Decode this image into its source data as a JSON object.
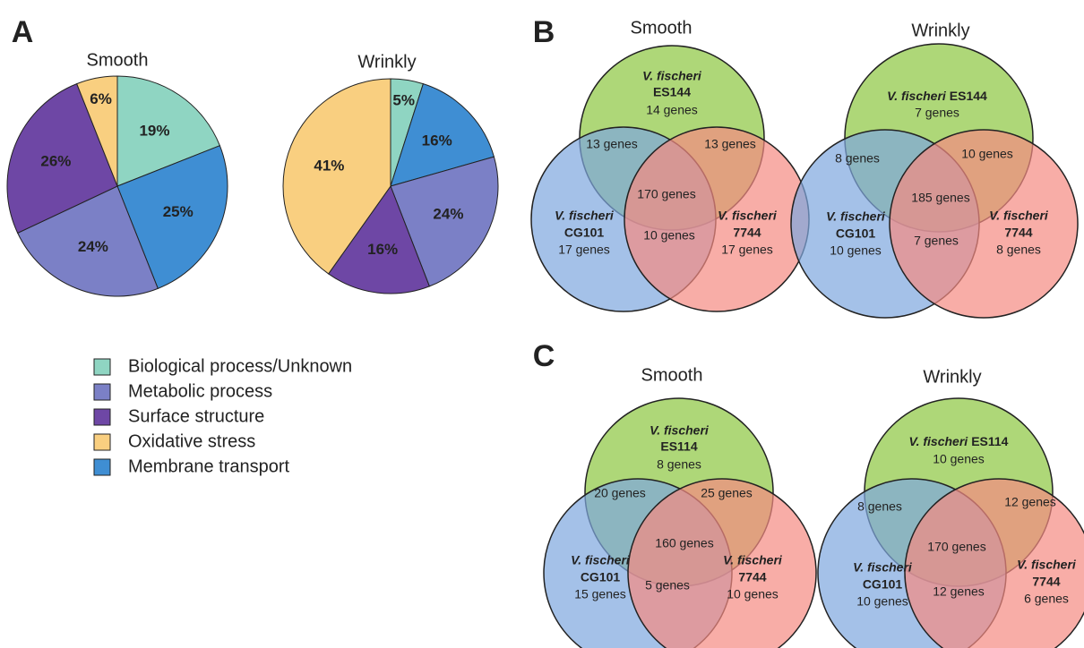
{
  "chart_data": [
    {
      "type": "pie",
      "panel": "A",
      "title": "Smooth",
      "values": [
        19,
        25,
        24,
        26,
        6
      ],
      "value_labels": [
        "19%",
        "25%",
        "24%",
        "26%",
        "6%"
      ],
      "colors": [
        "#8fd5c2",
        "#3f8ed3",
        "#7b80c6",
        "#6e47a5",
        "#f9cf80"
      ],
      "legend": [
        {
          "label": "Biological process/Unknown",
          "color": "#8fd5c2"
        },
        {
          "label": "Metabolic process",
          "color": "#7b80c6"
        },
        {
          "label": "Surface structure",
          "color": "#6e47a5"
        },
        {
          "label": "Oxidative stress",
          "color": "#f9cf80"
        },
        {
          "label": "Membrane transport",
          "color": "#3f8ed3"
        }
      ]
    },
    {
      "type": "pie",
      "title": "Wrinkly",
      "values": [
        5,
        16,
        24,
        16,
        41
      ],
      "value_labels": [
        "5%",
        "16%",
        "24%",
        "16%",
        "41%"
      ],
      "colors": [
        "#8fd5c2",
        "#3f8ed3",
        "#7b80c6",
        "#6e47a5",
        "#f9cf80"
      ]
    },
    {
      "type": "venn",
      "panel": "B",
      "title": "Smooth",
      "sets": [
        {
          "species": "V. fischeri",
          "strain": "ES144",
          "color": "#8cc63f"
        },
        {
          "species": "V. fischeri",
          "strain": "CG101",
          "color": "#7ea7de"
        },
        {
          "species": "V. fischeri",
          "strain": "7744",
          "color": "#f58a82"
        }
      ],
      "values": [
        14,
        17,
        17,
        13,
        13,
        10,
        170
      ],
      "value_labels": [
        "14 genes",
        "17 genes",
        "17 genes",
        "13 genes",
        "13 genes",
        "10 genes",
        "170 genes"
      ]
    },
    {
      "type": "venn",
      "title": "Wrinkly",
      "sets": [
        {
          "species": "V. fischeri",
          "strain": "ES144",
          "color": "#8cc63f"
        },
        {
          "species": "V. fischeri",
          "strain": "CG101",
          "color": "#7ea7de"
        },
        {
          "species": "V. fischeri",
          "strain": "7744",
          "color": "#f58a82"
        }
      ],
      "values": [
        7,
        10,
        8,
        8,
        10,
        7,
        185
      ],
      "value_labels": [
        "7 genes",
        "10 genes",
        "8 genes",
        "8 genes",
        "10 genes",
        "7 genes",
        "185 genes"
      ]
    },
    {
      "type": "venn",
      "panel": "C",
      "title": "Smooth",
      "sets": [
        {
          "species": "V. fischeri",
          "strain": "ES114",
          "color": "#8cc63f"
        },
        {
          "species": "V. fischeri",
          "strain": "CG101",
          "color": "#7ea7de"
        },
        {
          "species": "V. fischeri",
          "strain": "7744",
          "color": "#f58a82"
        }
      ],
      "values": [
        8,
        15,
        10,
        20,
        25,
        5,
        160
      ],
      "value_labels": [
        "8 genes",
        "15 genes",
        "10 genes",
        "20 genes",
        "25 genes",
        "5 genes",
        "160 genes"
      ]
    },
    {
      "type": "venn",
      "title": "Wrinkly",
      "sets": [
        {
          "species": "V. fischeri",
          "strain": "ES114",
          "color": "#8cc63f"
        },
        {
          "species": "V. fischeri",
          "strain": "CG101",
          "color": "#7ea7de"
        },
        {
          "species": "V. fischeri",
          "strain": "7744",
          "color": "#f58a82"
        }
      ],
      "values": [
        10,
        10,
        6,
        8,
        12,
        12,
        170
      ],
      "value_labels": [
        "10 genes",
        "10 genes",
        "6 genes",
        "8 genes",
        "12 genes",
        "12 genes",
        "170 genes"
      ]
    }
  ]
}
